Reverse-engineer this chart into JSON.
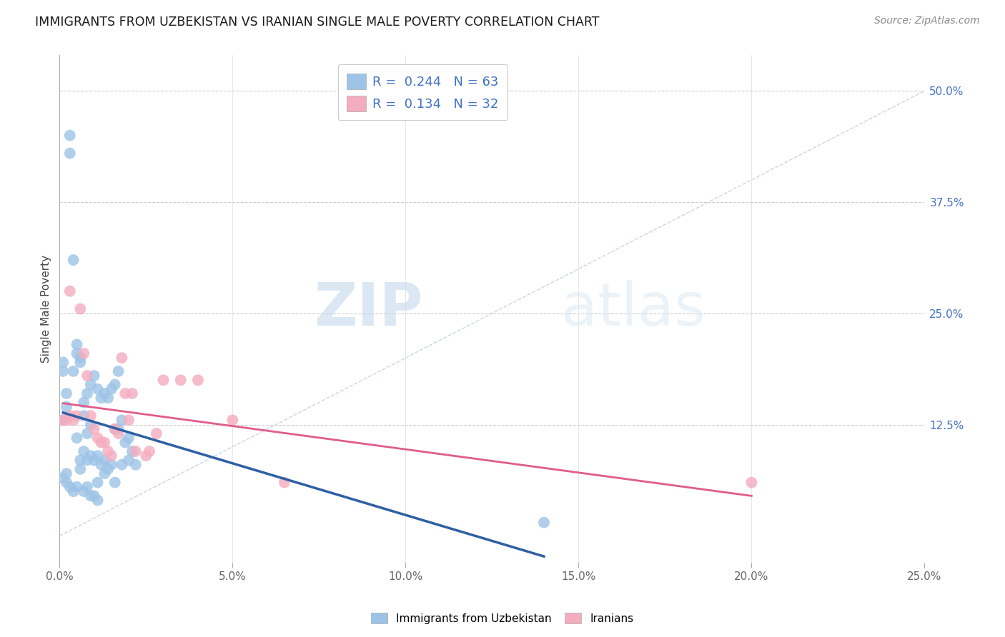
{
  "title": "IMMIGRANTS FROM UZBEKISTAN VS IRANIAN SINGLE MALE POVERTY CORRELATION CHART",
  "source": "Source: ZipAtlas.com",
  "ylabel": "Single Male Poverty",
  "yticks": [
    "12.5%",
    "25.0%",
    "37.5%",
    "50.0%"
  ],
  "ytick_vals": [
    0.125,
    0.25,
    0.375,
    0.5
  ],
  "xlim": [
    0.0,
    0.25
  ],
  "ylim": [
    -0.03,
    0.54
  ],
  "xtick_positions": [
    0.0,
    0.05,
    0.1,
    0.15,
    0.2,
    0.25
  ],
  "xtick_labels": [
    "0.0%",
    "5.0%",
    "10.0%",
    "15.0%",
    "20.0%",
    "25.0%"
  ],
  "watermark": "ZIPatlas",
  "color_uzbek": "#9DC3E6",
  "color_iran": "#F4ACBF",
  "color_uzbek_line": "#2E5FA3",
  "color_iran_line": "#E05C8A",
  "legend_text_color": "#4472C4",
  "uzbek_x": [
    0.001,
    0.002,
    0.002,
    0.003,
    0.003,
    0.004,
    0.004,
    0.005,
    0.005,
    0.005,
    0.006,
    0.006,
    0.006,
    0.007,
    0.007,
    0.007,
    0.008,
    0.008,
    0.008,
    0.009,
    0.009,
    0.009,
    0.01,
    0.01,
    0.011,
    0.011,
    0.011,
    0.012,
    0.012,
    0.013,
    0.013,
    0.014,
    0.014,
    0.015,
    0.015,
    0.016,
    0.016,
    0.017,
    0.017,
    0.018,
    0.018,
    0.019,
    0.02,
    0.02,
    0.021,
    0.022,
    0.001,
    0.001,
    0.001,
    0.002,
    0.002,
    0.003,
    0.004,
    0.005,
    0.006,
    0.007,
    0.008,
    0.009,
    0.01,
    0.011,
    0.013,
    0.016,
    0.14
  ],
  "uzbek_y": [
    0.13,
    0.145,
    0.16,
    0.43,
    0.45,
    0.31,
    0.185,
    0.215,
    0.205,
    0.11,
    0.2,
    0.195,
    0.085,
    0.15,
    0.135,
    0.095,
    0.16,
    0.115,
    0.085,
    0.17,
    0.09,
    0.125,
    0.18,
    0.085,
    0.165,
    0.09,
    0.06,
    0.155,
    0.08,
    0.16,
    0.085,
    0.155,
    0.075,
    0.165,
    0.08,
    0.17,
    0.12,
    0.185,
    0.12,
    0.13,
    0.08,
    0.105,
    0.11,
    0.085,
    0.095,
    0.08,
    0.195,
    0.185,
    0.065,
    0.07,
    0.06,
    0.055,
    0.05,
    0.055,
    0.075,
    0.05,
    0.055,
    0.045,
    0.045,
    0.04,
    0.07,
    0.06,
    0.015
  ],
  "iran_x": [
    0.001,
    0.002,
    0.003,
    0.004,
    0.005,
    0.006,
    0.007,
    0.008,
    0.009,
    0.01,
    0.011,
    0.012,
    0.013,
    0.014,
    0.015,
    0.016,
    0.017,
    0.018,
    0.019,
    0.02,
    0.021,
    0.022,
    0.025,
    0.026,
    0.028,
    0.03,
    0.035,
    0.04,
    0.05,
    0.065,
    0.2,
    0.003
  ],
  "iran_y": [
    0.13,
    0.13,
    0.135,
    0.13,
    0.135,
    0.255,
    0.205,
    0.18,
    0.135,
    0.12,
    0.11,
    0.105,
    0.105,
    0.095,
    0.09,
    0.12,
    0.115,
    0.2,
    0.16,
    0.13,
    0.16,
    0.095,
    0.09,
    0.095,
    0.115,
    0.175,
    0.175,
    0.175,
    0.13,
    0.06,
    0.06,
    0.275
  ]
}
